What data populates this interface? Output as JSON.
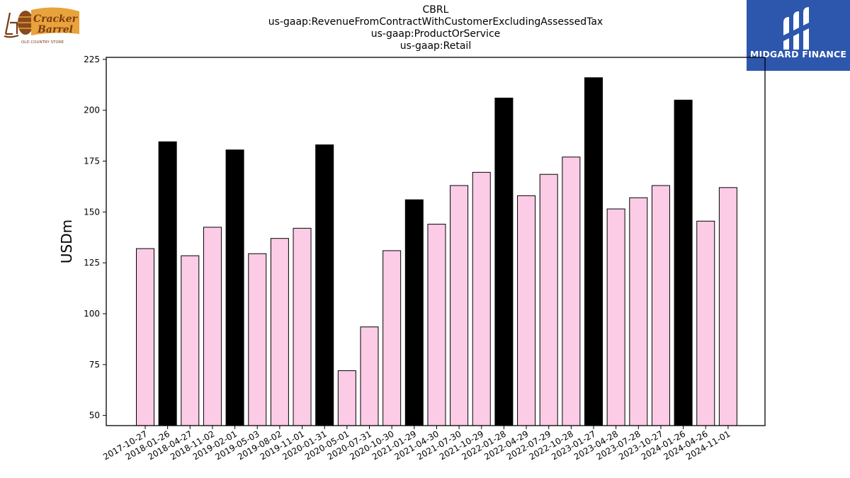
{
  "title_lines": [
    "CBRL",
    "us-gaap:RevenueFromContractWithCustomerExcludingAssessedTax",
    "us-gaap:ProductOrService",
    "us-gaap:Retail"
  ],
  "logos": {
    "left": {
      "text_main": "Cracker Barrel",
      "text_sub": "OLD COUNTRY STORE"
    },
    "right": {
      "text": "MIDGARD FINANCE"
    }
  },
  "colors": {
    "bar_default": "#fccbe6",
    "bar_highlight": "#000000",
    "bar_edge": "#000000",
    "right_logo_bg": "#2d56ad",
    "left_logo_brown": "#7a3b12",
    "left_logo_gold": "#e8a33c"
  },
  "chart_data": {
    "type": "bar",
    "ylabel": "USDm",
    "xlabel": "",
    "ylim": [
      45,
      226
    ],
    "yticks": [
      50,
      75,
      100,
      125,
      150,
      175,
      200,
      225
    ],
    "grid": false,
    "categories": [
      "2017-10-27",
      "2018-01-26",
      "2018-04-27",
      "2018-11-02",
      "2019-02-01",
      "2019-05-03",
      "2019-08-02",
      "2019-11-01",
      "2020-01-31",
      "2020-05-01",
      "2020-07-31",
      "2020-10-30",
      "2021-01-29",
      "2021-04-30",
      "2021-07-30",
      "2021-10-29",
      "2022-01-28",
      "2022-04-29",
      "2022-07-29",
      "2022-10-28",
      "2023-01-27",
      "2023-04-28",
      "2023-07-28",
      "2023-10-27",
      "2024-01-26",
      "2024-04-26",
      "2024-11-01"
    ],
    "values": [
      132.0,
      184.5,
      128.5,
      142.5,
      180.5,
      129.5,
      137.0,
      142.0,
      183.0,
      72.0,
      93.5,
      131.0,
      156.0,
      144.0,
      163.0,
      169.5,
      206.0,
      158.0,
      168.5,
      177.0,
      216.0,
      151.5,
      157.0,
      163.0,
      205.0,
      145.5,
      162.0
    ],
    "highlight": [
      false,
      true,
      false,
      false,
      true,
      false,
      false,
      false,
      true,
      false,
      false,
      false,
      true,
      false,
      false,
      false,
      true,
      false,
      false,
      false,
      true,
      false,
      false,
      false,
      true,
      false,
      false
    ]
  }
}
